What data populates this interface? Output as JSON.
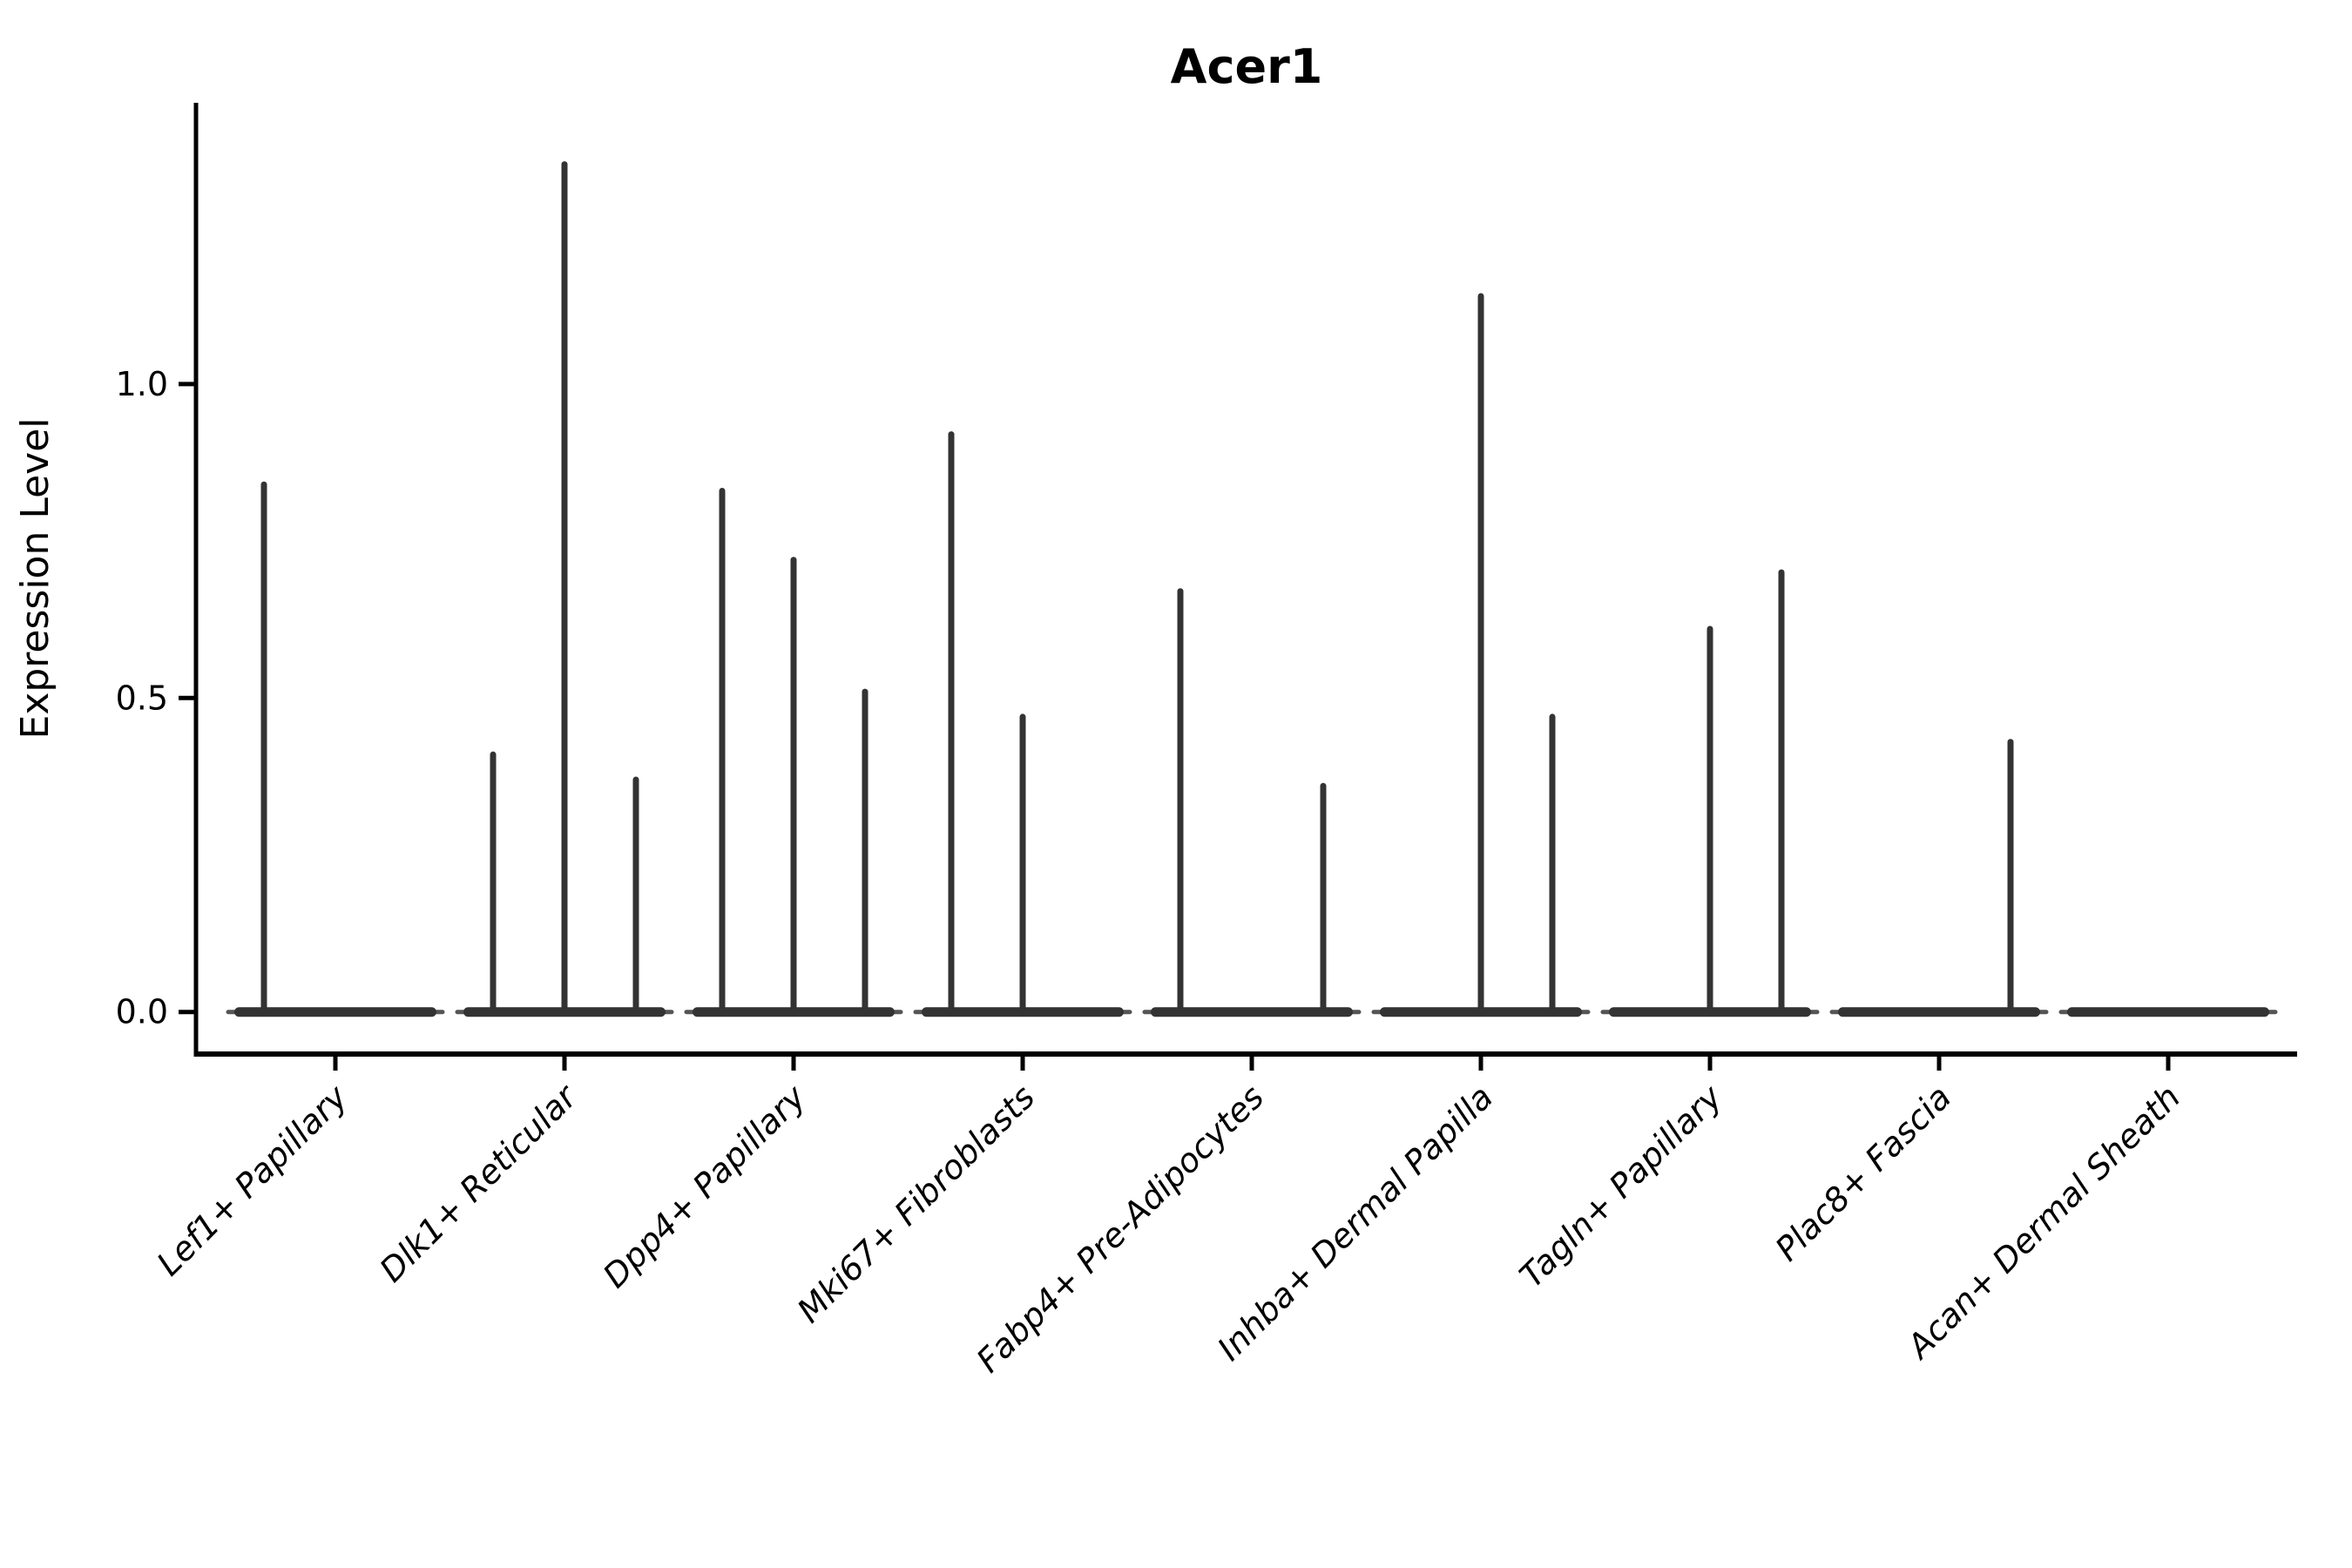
{
  "title": "Acer1",
  "y_axis": {
    "label": "Expression Level"
  },
  "colors": {
    "ink": "#000000",
    "violin": "#333333",
    "violin_taper": "#555555",
    "background": "#ffffff"
  },
  "chart_data": {
    "type": "violin",
    "title": "Acer1",
    "xlabel": "",
    "ylabel": "Expression Level",
    "ylim": [
      -0.067,
      1.448
    ],
    "yticks": [
      0.0,
      0.5,
      1.0
    ],
    "ytick_labels": [
      "0.0",
      "0.5",
      "1.0"
    ],
    "grid": false,
    "legend_position": "none",
    "groups_per_category": 3,
    "note": "Collapsed violins: each cell-type category holds up to 3 sub-violins (groups 1=left, 2=middle, 3=right); each sub-violin is a flat bar at expression 0 with a thin spike rising to its maximum expression value. Group entries absent from 'spikes' have no visible spike (max 0).",
    "categories": [
      "Lef1+ Papillary",
      "Dlk1+ Reticular",
      "Dpp4+ Papillary",
      "Mki67+ Fibroblasts",
      "Fabp4+ Pre-Adipocytes",
      "Inhba+ Dermal Papilla",
      "Tagln+ Papillary",
      "Plac8+ Fascia",
      "Acan+ Dermal Sheath"
    ],
    "violins": [
      {
        "category": "Lef1+ Papillary",
        "spikes": [
          {
            "group": 1,
            "max": 0.84
          }
        ]
      },
      {
        "category": "Dlk1+ Reticular",
        "spikes": [
          {
            "group": 1,
            "max": 0.41
          },
          {
            "group": 2,
            "max": 1.35
          },
          {
            "group": 3,
            "max": 0.37
          }
        ]
      },
      {
        "category": "Dpp4+ Papillary",
        "spikes": [
          {
            "group": 1,
            "max": 0.83
          },
          {
            "group": 2,
            "max": 0.72
          },
          {
            "group": 3,
            "max": 0.51
          }
        ]
      },
      {
        "category": "Mki67+ Fibroblasts",
        "spikes": [
          {
            "group": 1,
            "max": 0.92
          },
          {
            "group": 2,
            "max": 0.47
          }
        ]
      },
      {
        "category": "Fabp4+ Pre-Adipocytes",
        "spikes": [
          {
            "group": 1,
            "max": 0.67
          },
          {
            "group": 3,
            "max": 0.36
          }
        ]
      },
      {
        "category": "Inhba+ Dermal Papilla",
        "spikes": [
          {
            "group": 2,
            "max": 1.14
          },
          {
            "group": 3,
            "max": 0.47
          }
        ]
      },
      {
        "category": "Tagln+ Papillary",
        "spikes": [
          {
            "group": 2,
            "max": 0.61
          },
          {
            "group": 3,
            "max": 0.7
          }
        ]
      },
      {
        "category": "Plac8+ Fascia",
        "spikes": [
          {
            "group": 3,
            "max": 0.43
          }
        ]
      },
      {
        "category": "Acan+ Dermal Sheath",
        "spikes": []
      }
    ]
  }
}
